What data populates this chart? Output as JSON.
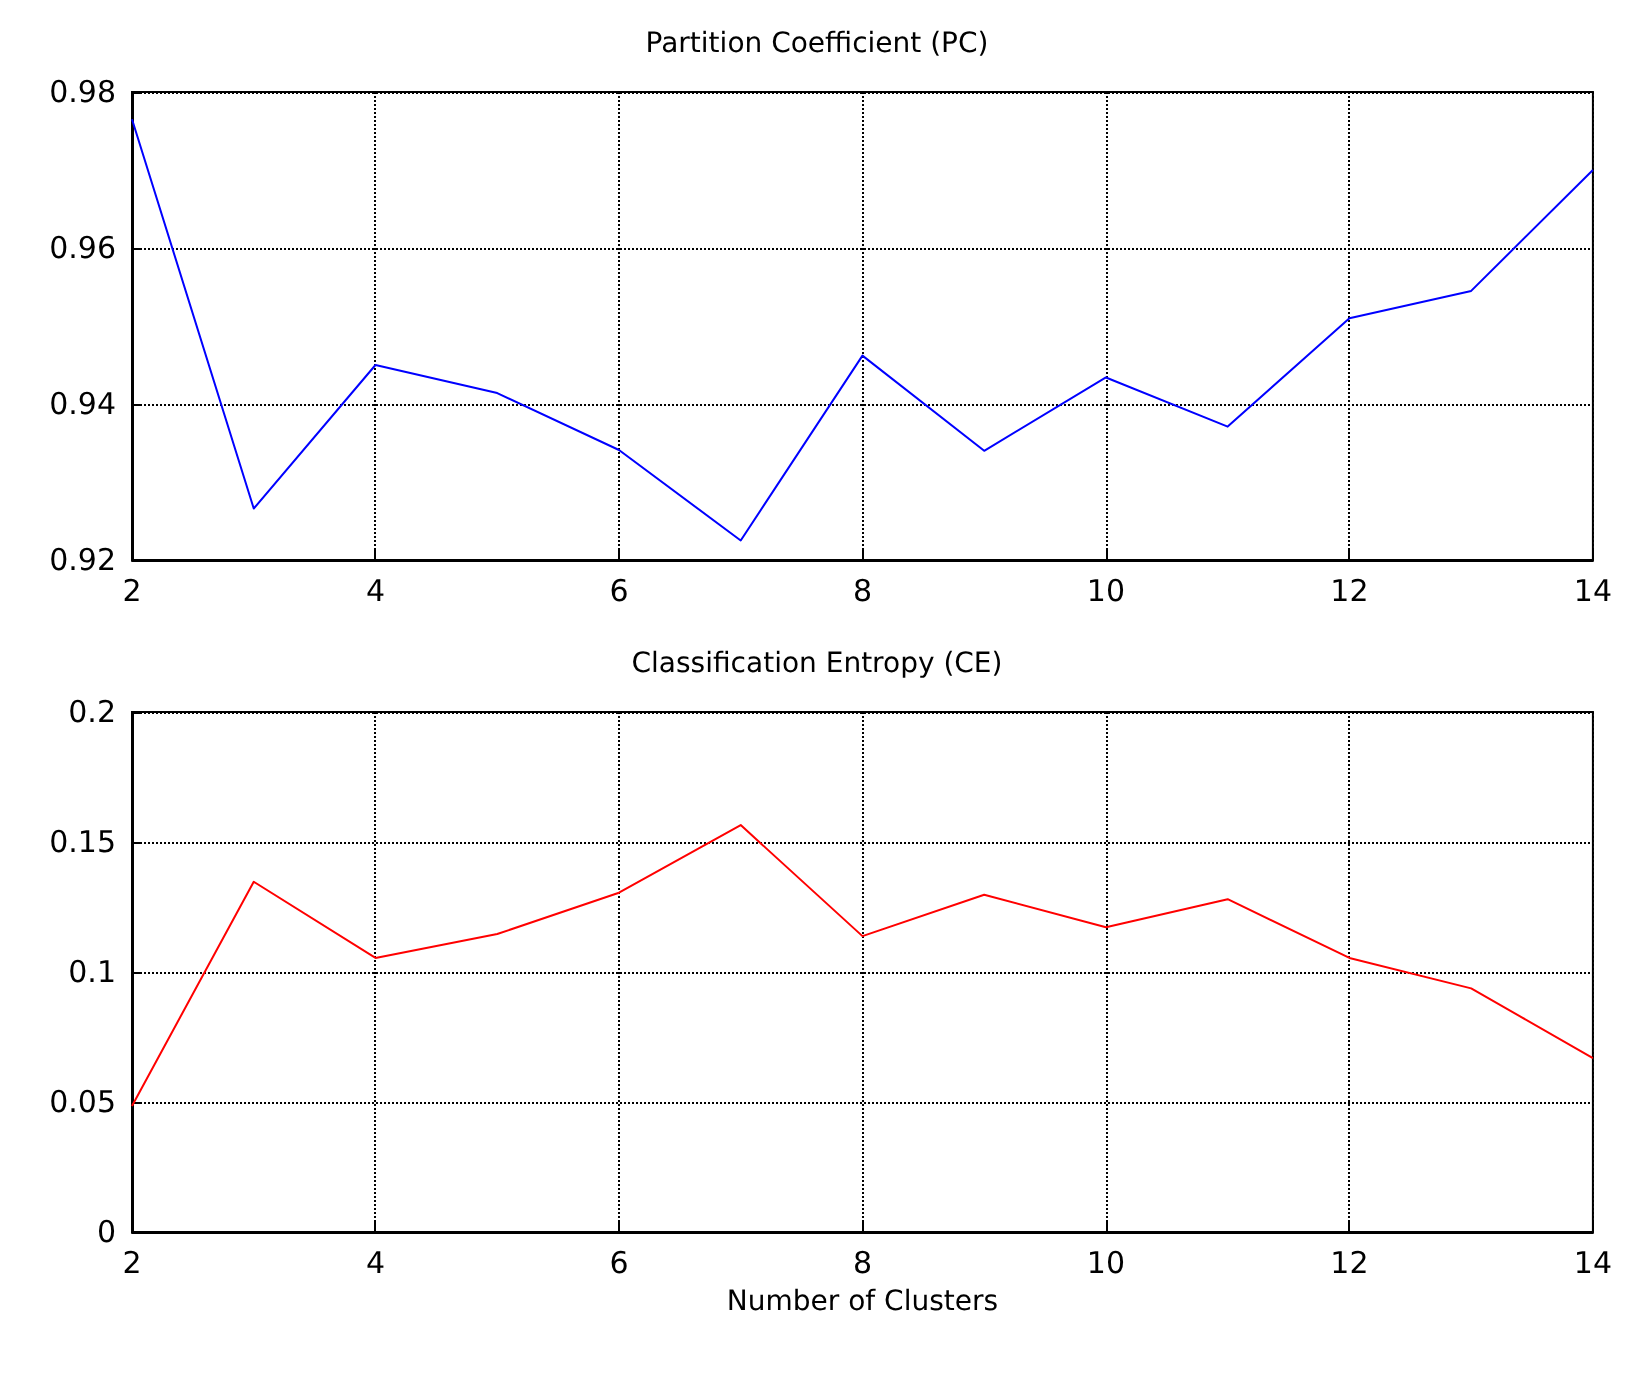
{
  "chart_data": [
    {
      "type": "line",
      "title": "Partition Coefficient (PC)",
      "x": [
        2,
        3,
        4,
        5,
        6,
        7,
        8,
        9,
        10,
        11,
        12,
        13,
        14
      ],
      "series": [
        {
          "color": "#0000ff",
          "values": [
            0.9765,
            0.9266,
            0.945,
            0.9414,
            0.9341,
            0.9225,
            0.9462,
            0.934,
            0.9434,
            0.9371,
            0.951,
            0.9545,
            0.97
          ]
        }
      ],
      "xlim": [
        2,
        14
      ],
      "xticks": [
        2,
        4,
        6,
        8,
        10,
        12,
        14
      ],
      "ylim": [
        0.92,
        0.98
      ],
      "yticks": [
        0.92,
        0.94,
        0.96,
        0.98
      ],
      "grid": true
    },
    {
      "type": "line",
      "title": "Classification Entropy (CE)",
      "xlabel": "Number of Clusters",
      "x": [
        2,
        3,
        4,
        5,
        6,
        7,
        8,
        9,
        10,
        11,
        12,
        13,
        14
      ],
      "series": [
        {
          "color": "#ff0000",
          "values": [
            0.0485,
            0.1347,
            0.1054,
            0.1146,
            0.1305,
            0.1565,
            0.1138,
            0.1297,
            0.1172,
            0.128,
            0.1054,
            0.0937,
            0.0669
          ]
        }
      ],
      "xlim": [
        2,
        14
      ],
      "xticks": [
        2,
        4,
        6,
        8,
        10,
        12,
        14
      ],
      "ylim": [
        0,
        0.2
      ],
      "yticks": [
        0,
        0.05,
        0.1,
        0.15,
        0.2
      ],
      "grid": true
    }
  ]
}
